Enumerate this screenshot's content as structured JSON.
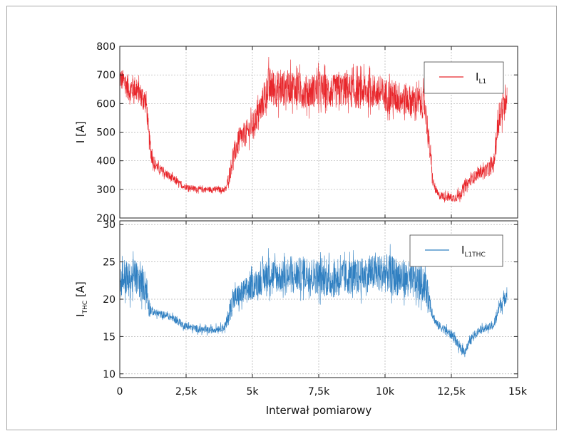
{
  "chart_data": [
    {
      "type": "line",
      "ylabel": "I [A]",
      "ylabel_main": "I",
      "ylabel_unit": "[A]",
      "ylim": [
        200,
        800
      ],
      "yticks": [
        200,
        300,
        400,
        500,
        600,
        700,
        800
      ],
      "xlim": [
        0,
        15000
      ],
      "grid": true,
      "legend_position": "top-right",
      "color": "#e8262b",
      "series": [
        {
          "name": "IL1",
          "label_main": "I",
          "label_sub": "L1",
          "x": [
            0,
            100,
            200,
            300,
            400,
            500,
            600,
            700,
            800,
            900,
            1000,
            1100,
            1200,
            1300,
            1500,
            1800,
            2100,
            2400,
            2700,
            3000,
            3300,
            3600,
            3900,
            4000,
            4150,
            4300,
            4500,
            4700,
            4900,
            5100,
            5300,
            5500,
            5600,
            6000,
            6500,
            7000,
            7500,
            8000,
            8500,
            9000,
            9500,
            10000,
            10500,
            11000,
            11500,
            11700,
            11800,
            11900,
            12000,
            12300,
            12600,
            12800,
            13000,
            13300,
            13600,
            13900,
            14100,
            14300,
            14500,
            14600
          ],
          "mid": [
            690,
            680,
            670,
            660,
            640,
            660,
            650,
            640,
            630,
            620,
            600,
            480,
            420,
            390,
            370,
            350,
            330,
            310,
            305,
            300,
            300,
            300,
            298,
            300,
            360,
            420,
            470,
            490,
            510,
            540,
            580,
            630,
            660,
            650,
            660,
            640,
            650,
            640,
            650,
            640,
            645,
            630,
            620,
            610,
            600,
            430,
            330,
            300,
            280,
            275,
            270,
            280,
            310,
            340,
            360,
            370,
            390,
            560,
            600,
            640
          ],
          "amp": [
            40,
            40,
            45,
            45,
            50,
            45,
            45,
            40,
            40,
            40,
            45,
            40,
            30,
            20,
            18,
            16,
            14,
            10,
            10,
            10,
            10,
            10,
            10,
            12,
            30,
            40,
            45,
            45,
            45,
            45,
            50,
            60,
            70,
            65,
            60,
            60,
            60,
            60,
            60,
            60,
            60,
            60,
            60,
            55,
            55,
            40,
            20,
            15,
            15,
            15,
            15,
            20,
            20,
            20,
            20,
            25,
            30,
            60,
            55,
            60
          ]
        }
      ]
    },
    {
      "type": "line",
      "ylabel": "ITHC [A]",
      "ylabel_main": "I",
      "ylabel_sub": "THC",
      "ylabel_unit": "[A]",
      "ylim": [
        9.5,
        30.5
      ],
      "yticks": [
        10,
        15,
        20,
        25,
        30
      ],
      "xlim": [
        0,
        15000
      ],
      "xticks": [
        0,
        2500,
        5000,
        7500,
        10000,
        12500,
        15000
      ],
      "xticklabels": [
        "0",
        "2,5k",
        "5k",
        "7,5k",
        "10k",
        "12,5k",
        "15k"
      ],
      "xlabel": "Interwał pomiarowy",
      "grid": true,
      "legend_position": "top-right",
      "color": "#2f7fc1",
      "series": [
        {
          "name": "IL1THC",
          "label_main": "I",
          "label_sub": "L1THC",
          "x": [
            0,
            100,
            200,
            300,
            400,
            500,
            600,
            700,
            800,
            900,
            1000,
            1100,
            1200,
            1300,
            1500,
            1800,
            2100,
            2400,
            2700,
            3000,
            3300,
            3600,
            3900,
            4000,
            4150,
            4300,
            4500,
            4700,
            4900,
            5100,
            5300,
            5500,
            5600,
            6000,
            6500,
            7000,
            7500,
            8000,
            8500,
            9000,
            9500,
            10000,
            10500,
            11000,
            11500,
            11700,
            11800,
            11900,
            12000,
            12300,
            12600,
            12800,
            13000,
            13300,
            13600,
            13900,
            14100,
            14300,
            14500,
            14600
          ],
          "mid": [
            22,
            23,
            23,
            22.5,
            22.5,
            23,
            23,
            22.5,
            22,
            22,
            21.5,
            19,
            18.5,
            18.2,
            18,
            17.8,
            17.3,
            16.5,
            16.2,
            16,
            15.8,
            16,
            16.2,
            16.5,
            18.5,
            20,
            20.5,
            21,
            21.5,
            22,
            22.5,
            23,
            23.5,
            23,
            23,
            23.5,
            23,
            22.5,
            23,
            23,
            23.5,
            23.5,
            23,
            22.5,
            22,
            19.5,
            18,
            17,
            16.5,
            15.8,
            15,
            13.5,
            13,
            15,
            16,
            16.2,
            16.5,
            19,
            20,
            21
          ],
          "amp": [
            2.2,
            2.4,
            2.6,
            2.4,
            2.4,
            2.4,
            2.4,
            2.2,
            2.2,
            2.2,
            2.2,
            1.5,
            0.6,
            0.5,
            0.5,
            0.5,
            0.5,
            0.5,
            0.5,
            0.5,
            0.5,
            0.5,
            0.5,
            0.8,
            1.5,
            1.6,
            1.6,
            1.8,
            1.8,
            1.8,
            2,
            2.2,
            2.4,
            2.2,
            2.2,
            2.4,
            2.4,
            2.4,
            2.4,
            2.4,
            2.4,
            2.6,
            2.6,
            2.4,
            2.4,
            1.5,
            0.6,
            0.6,
            0.6,
            0.6,
            0.6,
            0.6,
            0.6,
            0.6,
            0.5,
            0.5,
            0.6,
            1.2,
            1,
            1.2
          ]
        }
      ]
    }
  ]
}
